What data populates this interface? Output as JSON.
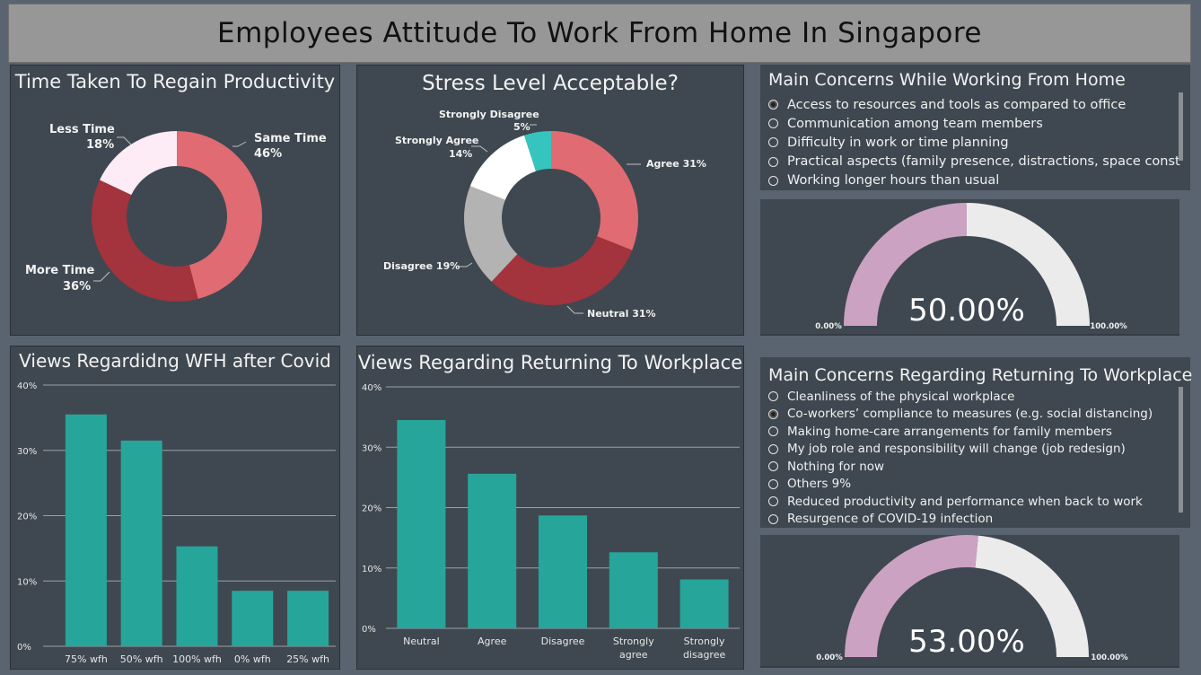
{
  "title": "Employees Attitude To Work From Home In Singapore",
  "colors": {
    "panel": "#3f4850",
    "teal": "#26a69a",
    "pink": "#e06b72",
    "darkred": "#a3333d",
    "lightpink": "#fdebf6",
    "grey": "#b3b3b3",
    "white": "#ffffff",
    "cyan": "#36c4be",
    "gauge_fill": "#cba2c1",
    "gauge_track": "#ebebeb"
  },
  "chart_data": [
    {
      "type": "pie",
      "title": "Time Taken To Regain Productivity",
      "slices": [
        {
          "name": "Same Time",
          "value": 46,
          "label": "46%"
        },
        {
          "name": "More Time",
          "value": 36,
          "label": "36%"
        },
        {
          "name": "Less Time",
          "value": 18,
          "label": "18%"
        }
      ]
    },
    {
      "type": "pie",
      "title": "Stress Level Acceptable?",
      "slices": [
        {
          "name": "Agree",
          "value": 31,
          "label": "Agree 31%"
        },
        {
          "name": "Neutral",
          "value": 31,
          "label": "Neutral 31%"
        },
        {
          "name": "Disagree",
          "value": 19,
          "label": "Disagree 19%"
        },
        {
          "name": "Strongly Agree",
          "value": 14,
          "label": "14%"
        },
        {
          "name": "Strongly Disagree",
          "value": 5,
          "label": "5%"
        }
      ]
    },
    {
      "type": "bar",
      "title": "Views Regardidng WFH after Covid",
      "categories": [
        "75% wfh",
        "50% wfh",
        "100% wfh",
        "0% wfh",
        "25% wfh"
      ],
      "values": [
        35.5,
        31.5,
        15.3,
        8.5,
        8.5
      ],
      "yticks": [
        "0%",
        "10%",
        "20%",
        "30%",
        "40%"
      ],
      "ylim": [
        0,
        40
      ],
      "grid": true
    },
    {
      "type": "bar",
      "title": "Views Regarding Returning To Workplace",
      "categories": [
        "Neutral",
        "Agree",
        "Disagree",
        "Strongly agree",
        "Strongly disagree"
      ],
      "values": [
        34.5,
        25.6,
        18.7,
        12.6,
        8.1
      ],
      "yticks": [
        "0%",
        "10%",
        "20%",
        "30%",
        "40%"
      ],
      "ylim": [
        0,
        40
      ],
      "grid": true
    }
  ],
  "slicer_home": {
    "title": "Main Concerns While Working From Home",
    "options": [
      "Access to resources and tools as compared to office",
      "Communication among team members",
      "Difficulty in work or time planning",
      "Practical aspects (family presence, distractions, space constraints)",
      "Working longer hours than usual"
    ],
    "selected": 0
  },
  "gauge_home": {
    "value": 50,
    "label": "50.00%",
    "min_label": "0.00%",
    "max_label": "100.00%"
  },
  "slicer_return": {
    "title": "Main Concerns Regarding Returning To Workplace",
    "options": [
      "Cleanliness of the physical workplace",
      "Co-workers’ compliance to measures (e.g. social distancing)",
      "Making home-care arrangements for family members",
      "My job role and responsibility will change (job redesign)",
      "Nothing for now",
      "Others 9%",
      "Reduced productivity and performance when back to work",
      "Resurgence of COVID-19 infection"
    ],
    "selected": 1
  },
  "gauge_return": {
    "value": 53,
    "label": "53.00%",
    "min_label": "0.00%",
    "max_label": "100.00%"
  }
}
